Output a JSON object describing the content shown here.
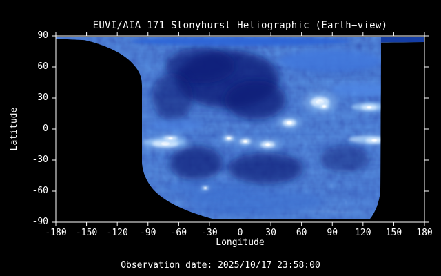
{
  "header": {
    "title": "EUVI/AIA 171 Stonyhurst Heliographic (Earth−view)"
  },
  "footer": {
    "observation_date": "Observation date: 2025/10/17 23:58:00"
  },
  "colors": {
    "background": "#000000",
    "frame": "#ffffff",
    "text": "#ffffff",
    "map_base": "#1646b4",
    "map_dark": "#091d77",
    "map_bright": "#ffffff",
    "map_light_streak": "#7fb2f0"
  },
  "chart_data": {
    "type": "heatmap",
    "title": "EUVI/AIA 171 Stonyhurst Heliographic (Earth−view)",
    "xlabel": "Longitude",
    "ylabel": "Latitude",
    "xlim": [
      -180,
      180
    ],
    "ylim": [
      -90,
      90
    ],
    "x_ticks": [
      -180,
      -150,
      -120,
      -90,
      -60,
      -30,
      0,
      30,
      60,
      90,
      120,
      150,
      180
    ],
    "y_ticks": [
      90,
      60,
      30,
      0,
      -30,
      -60,
      -90
    ],
    "grid": false,
    "legend": "none",
    "colormap": "SDO/AIA 171 blue",
    "observation_date": "2025/10/17 23:58:00",
    "data_coverage": {
      "lon_min": -95,
      "lon_max": 138,
      "polar_strip_lat": [
        87,
        90
      ],
      "note": "black areas = no data; thin data strip spans all longitudes near lat +90"
    },
    "bright_regions": [
      {
        "lon": 78,
        "lat": 26,
        "size": 1.7,
        "stretch": 1.0
      },
      {
        "lon": 82,
        "lat": 22,
        "size": 0.8,
        "stretch": 1.0
      },
      {
        "lon": 48,
        "lat": 6,
        "size": 1.1,
        "stretch": 1.1
      },
      {
        "lon": 27,
        "lat": -15,
        "size": 1.0,
        "stretch": 1.3
      },
      {
        "lon": 5,
        "lat": -12,
        "size": 0.8,
        "stretch": 1.2
      },
      {
        "lon": -11,
        "lat": -9,
        "size": 0.8,
        "stretch": 1.0
      },
      {
        "lon": -73,
        "lat": -14,
        "size": 1.1,
        "stretch": 2.2
      },
      {
        "lon": -68,
        "lat": -9,
        "size": 0.7,
        "stretch": 1.8
      },
      {
        "lon": 131,
        "lat": -11,
        "size": 0.9,
        "stretch": 1.8
      },
      {
        "lon": 126,
        "lat": 21,
        "size": 0.8,
        "stretch": 1.8
      },
      {
        "lon": -34,
        "lat": -57,
        "size": 0.5,
        "stretch": 1.0
      }
    ],
    "dark_regions": [
      {
        "lon": -12,
        "lat": 48,
        "rlon": 50,
        "rlat": 28,
        "opacity": 0.8
      },
      {
        "lon": -39,
        "lat": 61,
        "rlon": 34,
        "rlat": 17,
        "opacity": 0.7
      },
      {
        "lon": 15,
        "lat": 28,
        "rlon": 30,
        "rlat": 19,
        "opacity": 0.75
      },
      {
        "lon": -43,
        "lat": -33,
        "rlon": 26,
        "rlat": 17,
        "opacity": 0.7
      },
      {
        "lon": 25,
        "lat": -38,
        "rlon": 37,
        "rlat": 15,
        "opacity": 0.7
      },
      {
        "lon": 102,
        "lat": -29,
        "rlon": 24,
        "rlat": 13,
        "opacity": 0.5
      },
      {
        "lon": -66,
        "lat": 31,
        "rlon": 20,
        "rlat": 23,
        "opacity": 0.6
      }
    ]
  }
}
